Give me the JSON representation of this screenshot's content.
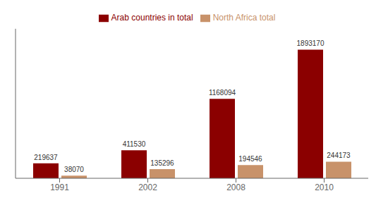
{
  "chart_data": {
    "type": "bar",
    "categories": [
      "1991",
      "2002",
      "2008",
      "2010"
    ],
    "series": [
      {
        "name": "Arab countries in total",
        "color": "#8B0000",
        "values": [
          219637,
          411530,
          1168094,
          1893170
        ]
      },
      {
        "name": "North Africa total",
        "color": "#C8926A",
        "values": [
          38070,
          135296,
          194546,
          244173
        ]
      }
    ],
    "ylim": [
      0,
      2200000
    ],
    "data_labels": true,
    "tick_labels": "x",
    "legend": "top",
    "grid": false
  }
}
